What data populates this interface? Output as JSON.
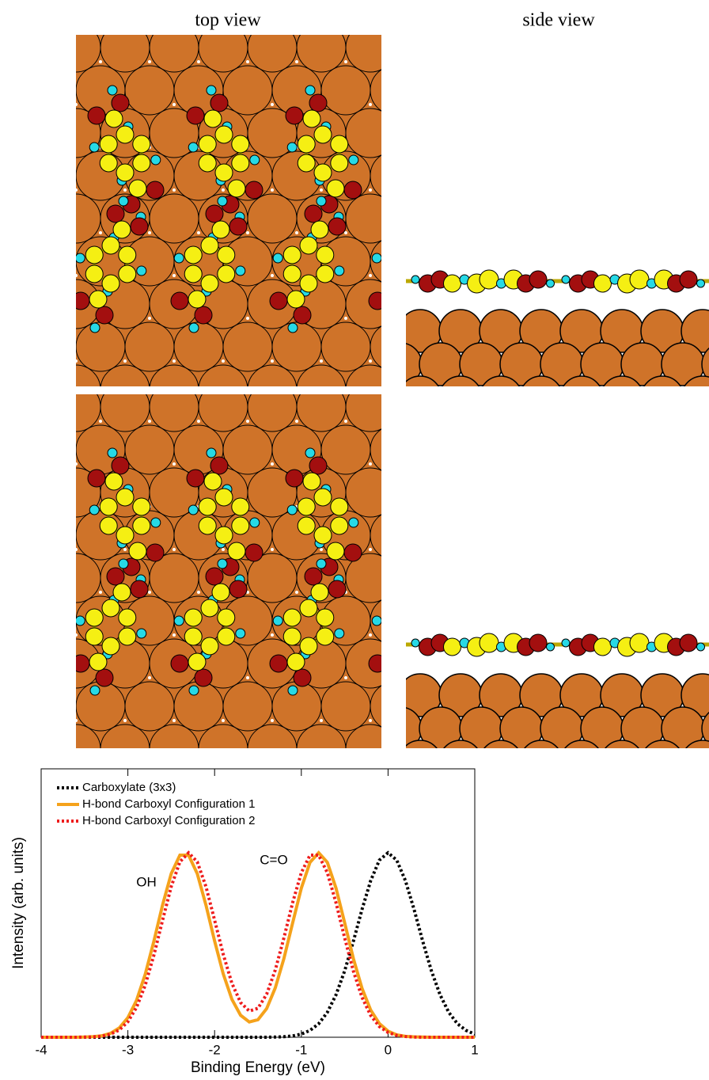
{
  "panels": {
    "top_view": "top view",
    "side_view": "side view"
  },
  "chart_data": {
    "type": "line",
    "xlabel": "Binding Energy (eV)",
    "ylabel": "Intensity (arb. units)",
    "annotations": [
      "OH",
      "C=O"
    ],
    "legend": "upper left",
    "xlim": [
      -4,
      1
    ],
    "xticks": [
      -4,
      -3,
      -2,
      -1,
      0,
      1
    ],
    "ylim": [
      0,
      1.455
    ],
    "x": [
      -4,
      -3.9,
      -3.8,
      -3.7,
      -3.6,
      -3.5,
      -3.4,
      -3.3,
      -3.2,
      -3.1,
      -3,
      -2.9,
      -2.8,
      -2.7,
      -2.6,
      -2.5,
      -2.4,
      -2.3,
      -2.2,
      -2.1,
      -2,
      -1.9,
      -1.8,
      -1.7,
      -1.6,
      -1.5,
      -1.4,
      -1.3,
      -1.2,
      -1.1,
      -1,
      -0.9,
      -0.8,
      -0.7,
      -0.6,
      -0.5,
      -0.4,
      -0.3,
      -0.2,
      -0.1,
      0,
      0.1,
      0.2,
      0.3,
      0.4,
      0.5,
      0.6,
      0.7,
      0.8,
      0.9,
      1
    ],
    "series": [
      {
        "name": "Carboxylate (3x3)",
        "color": "#000000",
        "style": "dotted",
        "values": [
          0,
          0,
          0,
          0,
          0,
          0,
          0,
          0,
          0,
          0,
          0,
          0,
          0,
          0,
          0,
          0,
          0,
          0,
          0,
          0,
          0,
          0,
          0,
          0,
          0,
          0,
          0,
          0.001,
          0.003,
          0.007,
          0.017,
          0.037,
          0.073,
          0.135,
          0.23,
          0.36,
          0.52,
          0.693,
          0.849,
          0.96,
          1,
          0.96,
          0.849,
          0.693,
          0.52,
          0.36,
          0.23,
          0.135,
          0.073,
          0.037,
          0.017
        ]
      },
      {
        "name": "H-bond Carboxyl Configuration 1",
        "color": "#f5a21b",
        "style": "solid",
        "values": [
          0,
          0,
          0,
          0,
          0,
          0.001,
          0.003,
          0.008,
          0.021,
          0.05,
          0.106,
          0.2,
          0.341,
          0.521,
          0.717,
          0.887,
          0.987,
          0.987,
          0.887,
          0.717,
          0.522,
          0.343,
          0.205,
          0.119,
          0.083,
          0.095,
          0.155,
          0.268,
          0.428,
          0.62,
          0.808,
          0.948,
          1,
          0.948,
          0.808,
          0.62,
          0.427,
          0.265,
          0.147,
          0.074,
          0.033,
          0.013,
          0.005,
          0.002,
          0.001,
          0,
          0,
          0,
          0,
          0,
          0
        ]
      },
      {
        "name": "H-bond Carboxyl Configuration 2",
        "color": "#ee1c1c",
        "style": "dotted",
        "values": [
          0,
          0,
          0,
          0,
          0,
          0.001,
          0.002,
          0.006,
          0.017,
          0.039,
          0.084,
          0.162,
          0.282,
          0.445,
          0.634,
          0.817,
          0.951,
          1,
          0.951,
          0.817,
          0.635,
          0.449,
          0.292,
          0.188,
          0.142,
          0.157,
          0.233,
          0.365,
          0.54,
          0.73,
          0.892,
          0.987,
          0.987,
          0.892,
          0.729,
          0.538,
          0.359,
          0.216,
          0.118,
          0.058,
          0.026,
          0.01,
          0.004,
          0.001,
          0,
          0,
          0,
          0,
          0,
          0,
          0
        ]
      }
    ]
  }
}
